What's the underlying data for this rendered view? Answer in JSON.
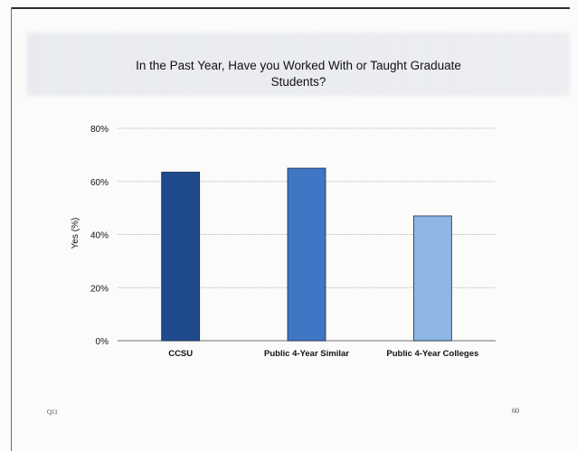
{
  "slide": {
    "footnote_left": "Q11",
    "page_number": "60"
  },
  "colors": {
    "bar_ccsu": "#1f4a8e",
    "bar_public_similar": "#3f77c4",
    "bar_public_colleges": "#8db6e4",
    "gridline": "#b5b5b5",
    "axis": "#6f6f6f"
  },
  "chart_data": {
    "type": "bar",
    "title": "In the Past Year, Have you Worked With or Taught Graduate Students?",
    "xlabel": "",
    "ylabel": "Yes (%)",
    "categories": [
      "CCSU",
      "Public 4-Year Similar",
      "Public 4-Year Colleges"
    ],
    "values": [
      63.5,
      65,
      47
    ],
    "ylim": [
      0,
      80
    ],
    "yticks": [
      "0%",
      "20%",
      "40%",
      "60%",
      "80%"
    ],
    "grid": true,
    "legend": "none"
  }
}
